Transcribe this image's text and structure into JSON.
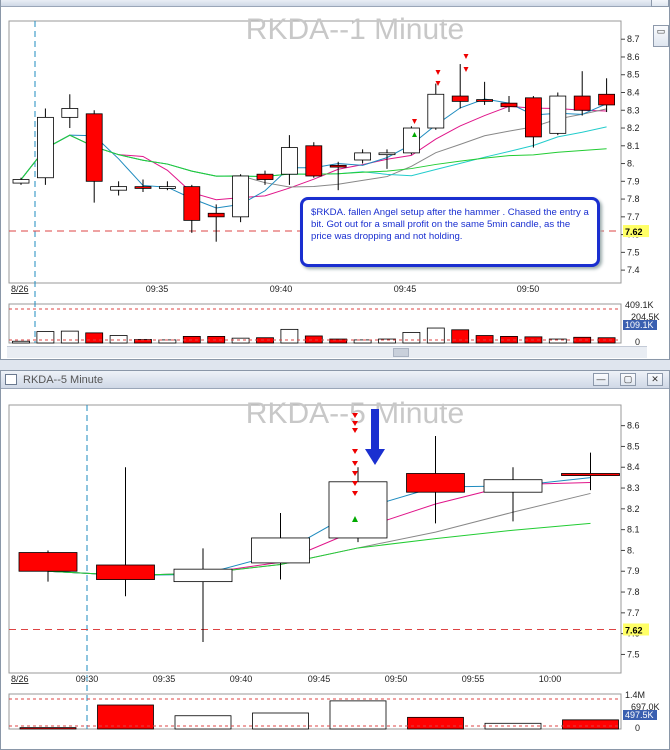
{
  "window1": {
    "title": "RKDA--1 Minute",
    "watermark": "RKDA--1 Minute",
    "date_label": "8/26",
    "annotation": "$RKDA. fallen Angel setup after the hammer . Chased the entry a bit. Got out for a small profit on the same 5min candle, as the price was dropping and not holding.",
    "current_price_label": "7.62",
    "volume_top_label": "409.1K",
    "volume_mid_label": "204.5K",
    "volume_current_label": "109.1K",
    "volume_zero_label": "0"
  },
  "window2": {
    "title": "RKDA--5 Minute",
    "watermark": "RKDA--5 Minute",
    "date_label": "8/26",
    "current_price_label": "7.62",
    "volume_top_label": "1.4M",
    "volume_mid_label": "697.0K",
    "volume_current_label": "497.5K",
    "volume_zero_label": "0"
  },
  "colors": {
    "up": "#ffffff",
    "down": "#ff0000",
    "ma_fast": "#e0158a",
    "ma_mid": "#1e8bbf",
    "ma_slow": "#888888",
    "ma_long": "#22cc33",
    "ma_cyan": "#22cccc",
    "arrow": "#1a2fd0",
    "price_line": "#dd4444"
  },
  "chart_data": [
    {
      "type": "candlestick",
      "title": "RKDA--1 Minute",
      "x_ticks": [
        "09:35",
        "09:40",
        "09:45",
        "09:50"
      ],
      "y_ticks": [
        7.4,
        7.5,
        7.6,
        7.7,
        7.8,
        7.9,
        8.0,
        8.1,
        8.2,
        8.3,
        8.4,
        8.5,
        8.6,
        8.7
      ],
      "y_tick_labels": [
        "7.4",
        "7.5",
        "7.6",
        "7.7",
        "7.8",
        "7.9",
        "8.",
        "8.1",
        "8.2",
        "8.3",
        "8.4",
        "8.5",
        "8.6",
        "8.7"
      ],
      "ylim": [
        7.35,
        8.78
      ],
      "price_line": 7.62,
      "candles": [
        {
          "o": 7.89,
          "h": 7.92,
          "l": 7.88,
          "c": 7.91,
          "v": 20
        },
        {
          "o": 7.92,
          "h": 8.31,
          "l": 7.88,
          "c": 8.26,
          "v": 130
        },
        {
          "o": 8.26,
          "h": 8.39,
          "l": 8.2,
          "c": 8.31,
          "v": 135
        },
        {
          "o": 8.28,
          "h": 8.3,
          "l": 7.78,
          "c": 7.9,
          "v": 115
        },
        {
          "o": 7.85,
          "h": 7.9,
          "l": 7.82,
          "c": 7.87,
          "v": 85
        },
        {
          "o": 7.87,
          "h": 7.91,
          "l": 7.84,
          "c": 7.86,
          "v": 40
        },
        {
          "o": 7.86,
          "h": 7.9,
          "l": 7.85,
          "c": 7.87,
          "v": 35
        },
        {
          "o": 7.87,
          "h": 7.88,
          "l": 7.61,
          "c": 7.68,
          "v": 75
        },
        {
          "o": 7.72,
          "h": 7.77,
          "l": 7.56,
          "c": 7.7,
          "v": 75
        },
        {
          "o": 7.7,
          "h": 7.94,
          "l": 7.67,
          "c": 7.93,
          "v": 55
        },
        {
          "o": 7.94,
          "h": 7.96,
          "l": 7.88,
          "c": 7.91,
          "v": 60
        },
        {
          "o": 7.94,
          "h": 8.16,
          "l": 7.88,
          "c": 8.09,
          "v": 155
        },
        {
          "o": 8.1,
          "h": 8.12,
          "l": 7.92,
          "c": 7.93,
          "v": 80
        },
        {
          "o": 7.99,
          "h": 8.01,
          "l": 7.85,
          "c": 7.98,
          "v": 45
        },
        {
          "o": 8.02,
          "h": 8.08,
          "l": 8.0,
          "c": 8.06,
          "v": 35
        },
        {
          "o": 8.05,
          "h": 8.08,
          "l": 7.97,
          "c": 8.06,
          "v": 45
        },
        {
          "o": 8.06,
          "h": 8.21,
          "l": 8.05,
          "c": 8.2,
          "v": 120
        },
        {
          "o": 8.2,
          "h": 8.45,
          "l": 8.19,
          "c": 8.39,
          "v": 170
        },
        {
          "o": 8.38,
          "h": 8.56,
          "l": 8.31,
          "c": 8.35,
          "v": 150
        },
        {
          "o": 8.36,
          "h": 8.46,
          "l": 8.33,
          "c": 8.35,
          "v": 85
        },
        {
          "o": 8.34,
          "h": 8.38,
          "l": 8.29,
          "c": 8.32,
          "v": 75
        },
        {
          "o": 8.37,
          "h": 8.38,
          "l": 8.09,
          "c": 8.15,
          "v": 70
        },
        {
          "o": 8.17,
          "h": 8.4,
          "l": 8.16,
          "c": 8.38,
          "v": 45
        },
        {
          "o": 8.38,
          "h": 8.52,
          "l": 8.27,
          "c": 8.3,
          "v": 65
        },
        {
          "o": 8.39,
          "h": 8.48,
          "l": 8.29,
          "c": 8.33,
          "v": 60
        }
      ],
      "volume_ylim": [
        0,
        409.1
      ]
    },
    {
      "type": "candlestick",
      "title": "RKDA--5 Minute",
      "x_ticks": [
        "09:30",
        "09:35",
        "09:40",
        "09:45",
        "09:50",
        "09:55",
        "10:00"
      ],
      "y_ticks": [
        7.5,
        7.6,
        7.7,
        7.8,
        7.9,
        8.0,
        8.1,
        8.2,
        8.3,
        8.4,
        8.5,
        8.6
      ],
      "y_tick_labels": [
        "7.5",
        "7.6",
        "7.7",
        "7.8",
        "7.9",
        "8.",
        "8.1",
        "8.2",
        "8.3",
        "8.4",
        "8.5",
        "8.6"
      ],
      "ylim": [
        7.43,
        8.68
      ],
      "price_line": 7.62,
      "candles": [
        {
          "o": 7.99,
          "h": 8.0,
          "l": 7.85,
          "c": 7.9,
          "v": 60
        },
        {
          "o": 7.93,
          "h": 8.4,
          "l": 7.78,
          "c": 7.86,
          "v": 1050
        },
        {
          "o": 7.85,
          "h": 8.01,
          "l": 7.56,
          "c": 7.91,
          "v": 580
        },
        {
          "o": 7.94,
          "h": 8.18,
          "l": 7.86,
          "c": 8.06,
          "v": 700
        },
        {
          "o": 8.06,
          "h": 8.4,
          "l": 8.04,
          "c": 8.33,
          "v": 1230
        },
        {
          "o": 8.37,
          "h": 8.55,
          "l": 8.13,
          "c": 8.28,
          "v": 510
        },
        {
          "o": 8.28,
          "h": 8.4,
          "l": 8.14,
          "c": 8.34,
          "v": 250
        },
        {
          "o": 8.37,
          "h": 8.47,
          "l": 8.29,
          "c": 8.36,
          "v": 400
        }
      ],
      "volume_ylim": [
        0,
        1400
      ]
    }
  ]
}
